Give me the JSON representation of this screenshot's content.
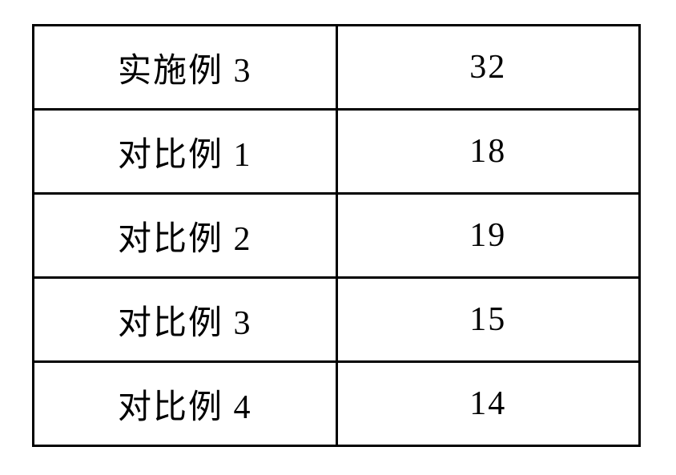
{
  "table": {
    "type": "table",
    "border_color": "#000000",
    "background_color": "#ffffff",
    "text_color": "#000000",
    "font_family_serif_cjk": "SimSun",
    "font_size_pt": 32,
    "column_widths_pct": [
      50,
      50
    ],
    "column_align": [
      "center",
      "center"
    ],
    "rows": [
      {
        "label": "实施例 3",
        "value": "32"
      },
      {
        "label": "对比例 1",
        "value": "18"
      },
      {
        "label": "对比例 2",
        "value": "19"
      },
      {
        "label": "对比例 3",
        "value": "15"
      },
      {
        "label": "对比例 4",
        "value": "14"
      }
    ]
  }
}
